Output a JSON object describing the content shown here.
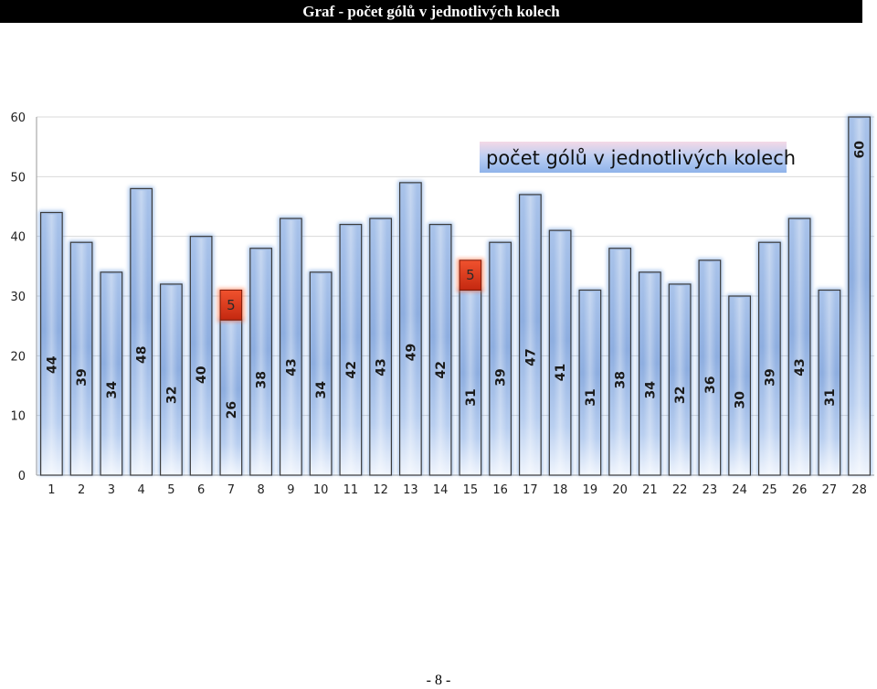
{
  "page": {
    "header_title": "Graf - počet gólů v jednotlivých kolech",
    "page_number": "- 8 -"
  },
  "chart_data": {
    "type": "bar",
    "legend": "počet gólů v jednotlivých kolech",
    "legend_position": "top-right",
    "categories": [
      "1",
      "2",
      "3",
      "4",
      "5",
      "6",
      "7",
      "8",
      "9",
      "10",
      "11",
      "12",
      "13",
      "14",
      "15",
      "16",
      "17",
      "18",
      "19",
      "20",
      "21",
      "22",
      "23",
      "24",
      "25",
      "26",
      "27",
      "28"
    ],
    "series": [
      {
        "values": [
          44,
          39,
          34,
          48,
          32,
          40,
          26,
          38,
          43,
          34,
          42,
          43,
          49,
          42,
          31,
          39,
          47,
          41,
          31,
          38,
          34,
          32,
          36,
          30,
          39,
          43,
          31,
          60
        ]
      }
    ],
    "highlights": [
      {
        "category": "7",
        "value": 5
      },
      {
        "category": "15",
        "value": 5
      }
    ],
    "ylim": [
      0,
      60
    ],
    "yticks": [
      0,
      10,
      20,
      30,
      40,
      50,
      60
    ],
    "grid": true,
    "colors": {
      "bar_top": "#c9dcf5",
      "bar_mid": "#8fb0e0",
      "bar_bottom": "#eef4fc",
      "highlight": "#e23a1f",
      "legend_bg": "#aec6ee"
    }
  }
}
